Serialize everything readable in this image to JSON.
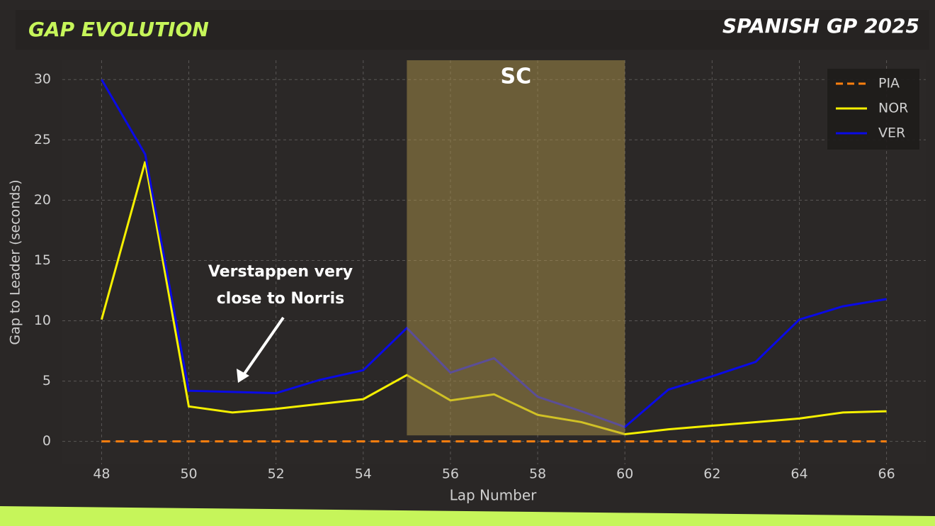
{
  "chart_data": {
    "type": "line",
    "title": "GAP EVOLUTION",
    "subtitle": "SPANISH GP 2025",
    "x_label": "Lap Number",
    "y_label": "Gap to Leader (seconds)",
    "x": [
      48,
      49,
      50,
      51,
      52,
      53,
      54,
      55,
      56,
      57,
      58,
      59,
      60,
      61,
      62,
      63,
      64,
      65,
      66
    ],
    "series": [
      {
        "name": "PIA",
        "color": "#ff7f0e",
        "linestyle": "dashed",
        "values": [
          0,
          0,
          0,
          0,
          0,
          0,
          0,
          0,
          0,
          0,
          0,
          0,
          0,
          0,
          0,
          0,
          0,
          0,
          0
        ]
      },
      {
        "name": "NOR",
        "color": "#f5f000",
        "linestyle": "solid",
        "values": [
          10.1,
          23.2,
          2.9,
          2.4,
          2.7,
          3.1,
          3.5,
          5.5,
          3.4,
          3.9,
          2.2,
          1.6,
          0.6,
          1.0,
          1.3,
          1.6,
          1.9,
          2.4,
          2.5
        ]
      },
      {
        "name": "VER",
        "color": "#0a0ae6",
        "linestyle": "solid",
        "values": [
          30,
          23.8,
          4.2,
          4.1,
          4.0,
          5.1,
          5.9,
          9.4,
          5.7,
          6.9,
          3.7,
          2.5,
          1.2,
          4.3,
          5.4,
          6.6,
          10.1,
          11.2,
          11.8
        ]
      }
    ],
    "xlim": [
      47.1,
      66.9
    ],
    "ylim": [
      -1.9,
      31.6
    ],
    "xticks": [
      48,
      50,
      52,
      54,
      56,
      58,
      60,
      62,
      64,
      66
    ],
    "yticks": [
      0,
      5,
      10,
      15,
      20,
      25,
      30
    ],
    "grid": true,
    "legend": "upper right",
    "shaded_region": {
      "label": "SC",
      "xlim": [
        55,
        60
      ],
      "ymin": 0.5,
      "color": "#ab9249",
      "opacity": 0.5
    },
    "annotation": [
      "Verstappen very",
      "close to Norris"
    ]
  }
}
